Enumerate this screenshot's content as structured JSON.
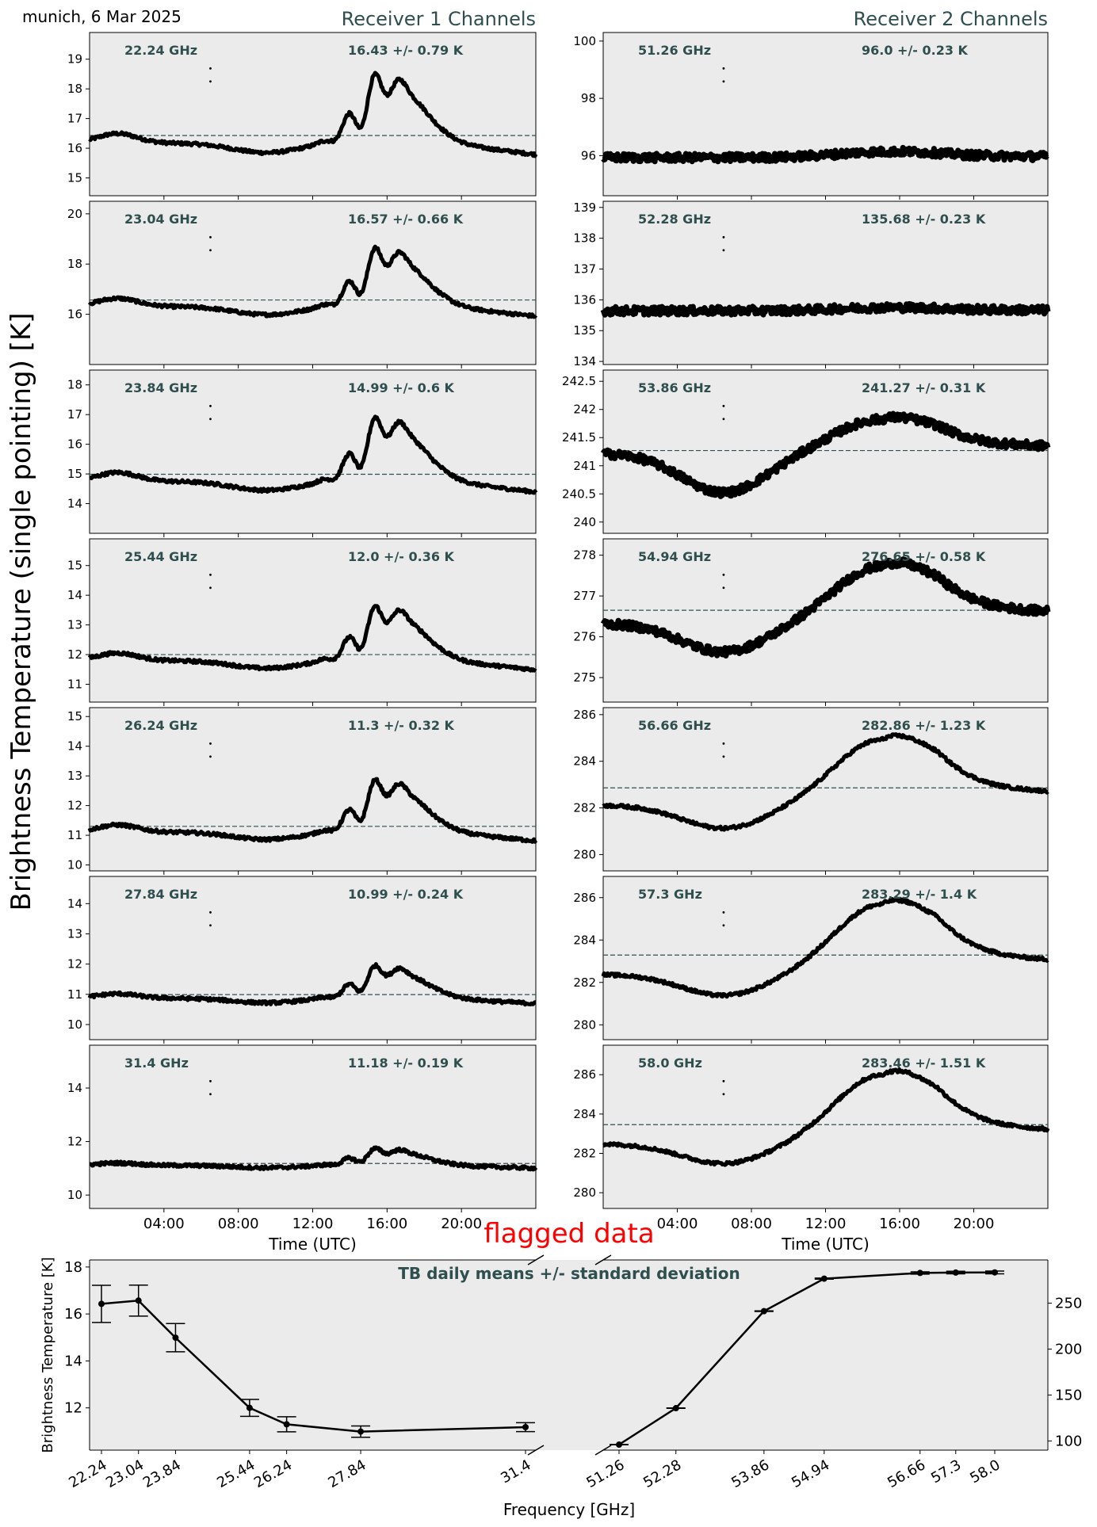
{
  "meta_label": "munich, 6 Mar 2025",
  "receiver1_title": "Receiver 1 Channels",
  "receiver2_title": "Receiver 2 Channels",
  "y_axis_title": "Brightness Temperature (single pointing) [K]",
  "time_axis_label": "Time (UTC)",
  "flag_label": "flagged data",
  "colors": {
    "panel_bg": "#ebebeb",
    "trace": "#000000",
    "mean_line": "#2f4f4f",
    "label": "#2f4f4f",
    "flag": "#ff0000"
  },
  "chart_data": [
    {
      "type": "line",
      "x_ticks": [
        "04:00",
        "08:00",
        "12:00",
        "16:00",
        "20:00"
      ],
      "xlabel": "Time (UTC)",
      "panels": [
        {
          "receiver": 1,
          "freq": "22.24 GHz",
          "stat": "16.43 +/- 0.79 K",
          "mean": 16.43,
          "ylim": [
            14.4,
            19.9
          ],
          "yticks": [
            15,
            16,
            17,
            18,
            19
          ]
        },
        {
          "receiver": 1,
          "freq": "23.04 GHz",
          "stat": "16.57 +/- 0.66 K",
          "mean": 16.57,
          "ylim": [
            14.0,
            20.5
          ],
          "yticks": [
            16,
            18,
            20
          ]
        },
        {
          "receiver": 1,
          "freq": "23.84 GHz",
          "stat": "14.99 +/- 0.6 K",
          "mean": 14.99,
          "ylim": [
            13.0,
            18.5
          ],
          "yticks": [
            14,
            15,
            16,
            17,
            18
          ]
        },
        {
          "receiver": 1,
          "freq": "25.44 GHz",
          "stat": "12.0 +/- 0.36 K",
          "mean": 12.0,
          "ylim": [
            10.4,
            15.9
          ],
          "yticks": [
            11,
            12,
            13,
            14,
            15
          ]
        },
        {
          "receiver": 1,
          "freq": "26.24 GHz",
          "stat": "11.3 +/- 0.32 K",
          "mean": 11.3,
          "ylim": [
            9.8,
            15.3
          ],
          "yticks": [
            10,
            11,
            12,
            13,
            14,
            15
          ]
        },
        {
          "receiver": 1,
          "freq": "27.84 GHz",
          "stat": "10.99 +/- 0.24 K",
          "mean": 10.99,
          "ylim": [
            9.5,
            14.9
          ],
          "yticks": [
            10,
            11,
            12,
            13,
            14
          ]
        },
        {
          "receiver": 1,
          "freq": "31.4 GHz",
          "stat": "11.18 +/- 0.19 K",
          "mean": 11.18,
          "ylim": [
            9.5,
            15.6
          ],
          "yticks": [
            10,
            12,
            14
          ]
        },
        {
          "receiver": 2,
          "freq": "51.26 GHz",
          "stat": "96.0 +/- 0.23 K",
          "mean": 96.0,
          "ylim": [
            94.6,
            100.3
          ],
          "yticks": [
            96,
            98,
            100
          ]
        },
        {
          "receiver": 2,
          "freq": "52.28 GHz",
          "stat": "135.68 +/- 0.23 K",
          "mean": 135.68,
          "ylim": [
            133.9,
            139.2
          ],
          "yticks": [
            134,
            135,
            136,
            137,
            138,
            139
          ]
        },
        {
          "receiver": 2,
          "freq": "53.86 GHz",
          "stat": "241.27 +/- 0.31 K",
          "mean": 241.27,
          "ylim": [
            239.8,
            242.7
          ],
          "yticks": [
            240.0,
            240.5,
            241.0,
            241.5,
            242.0,
            242.5
          ]
        },
        {
          "receiver": 2,
          "freq": "54.94 GHz",
          "stat": "276.65 +/- 0.58 K",
          "mean": 276.65,
          "ylim": [
            274.4,
            278.4
          ],
          "yticks": [
            275,
            276,
            277,
            278
          ]
        },
        {
          "receiver": 2,
          "freq": "56.66 GHz",
          "stat": "282.86 +/- 1.23 K",
          "mean": 282.86,
          "ylim": [
            279.3,
            286.3
          ],
          "yticks": [
            280,
            282,
            284,
            286
          ]
        },
        {
          "receiver": 2,
          "freq": "57.3 GHz",
          "stat": "283.29 +/- 1.4 K",
          "mean": 283.29,
          "ylim": [
            279.3,
            287.0
          ],
          "yticks": [
            280,
            282,
            284,
            286
          ]
        },
        {
          "receiver": 2,
          "freq": "58.0 GHz",
          "stat": "283.46 +/- 1.51 K",
          "mean": 283.46,
          "ylim": [
            279.2,
            287.5
          ],
          "yticks": [
            280,
            282,
            284,
            286
          ]
        }
      ]
    },
    {
      "type": "line",
      "title": "TB daily means +/- standard deviation",
      "xlabel": "Frequency [GHz]",
      "ylabel": "Brightness Temperature [K]",
      "left": {
        "x": [
          22.24,
          23.04,
          23.84,
          25.44,
          26.24,
          27.84,
          31.4
        ],
        "tick_labels": [
          "22.24",
          "23.04",
          "23.84",
          "25.44",
          "26.24",
          "27.84",
          "31.4"
        ],
        "y": [
          16.43,
          16.57,
          14.99,
          12.0,
          11.3,
          10.99,
          11.18
        ],
        "err": [
          0.79,
          0.66,
          0.6,
          0.36,
          0.32,
          0.24,
          0.19
        ],
        "ylim": [
          10.2,
          18.3
        ],
        "yticks": [
          12,
          14,
          16,
          18
        ]
      },
      "right": {
        "x": [
          51.26,
          52.28,
          53.86,
          54.94,
          56.66,
          57.3,
          58.0
        ],
        "tick_labels": [
          "51.26",
          "52.28",
          "53.86",
          "54.94",
          "56.66",
          "57.3",
          "58.0"
        ],
        "y": [
          96.0,
          135.68,
          241.27,
          276.65,
          282.86,
          283.29,
          283.46
        ],
        "err": [
          0.23,
          0.23,
          0.31,
          0.58,
          1.23,
          1.4,
          1.51
        ],
        "ylim": [
          90,
          297
        ],
        "yticks": [
          100,
          150,
          200,
          250
        ]
      }
    }
  ]
}
